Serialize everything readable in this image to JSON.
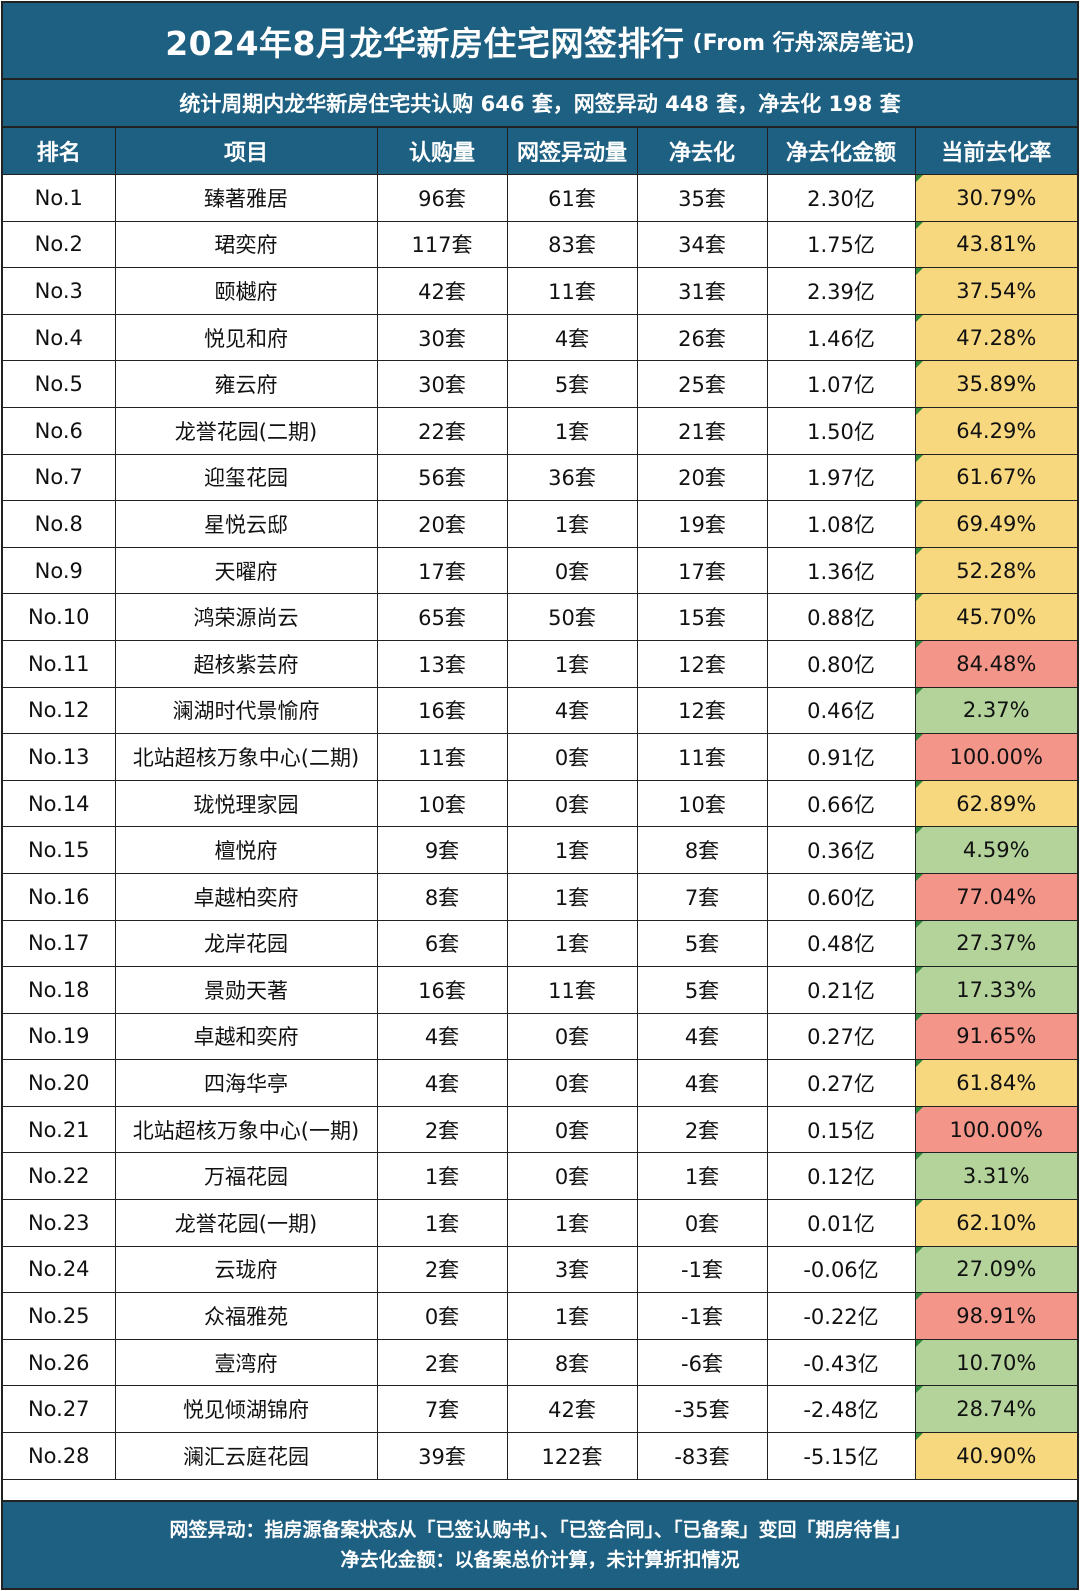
{
  "header": {
    "title": "2024年8月龙华新房住宅网签排行",
    "source": "(From 行舟深房笔记)",
    "subtitle": "统计周期内龙华新房住宅共认购 646 套，网签异动 448 套，净去化 198 套"
  },
  "colors": {
    "header_bg": "#1e6082",
    "rate_yellow": "#f7d87e",
    "rate_red": "#f4958a",
    "rate_green": "#b3d39a"
  },
  "chart_data": {
    "type": "table",
    "columns": [
      "排名",
      "项目",
      "认购量",
      "网签异动量",
      "净去化",
      "净去化金额",
      "当前去化率"
    ],
    "rows": [
      {
        "rank": "No.1",
        "project": "臻著雅居",
        "subscribed": "96套",
        "changed": "61套",
        "net": "35套",
        "amount": "2.30亿",
        "rate": "30.79%",
        "level": "yellow"
      },
      {
        "rank": "No.2",
        "project": "珺奕府",
        "subscribed": "117套",
        "changed": "83套",
        "net": "34套",
        "amount": "1.75亿",
        "rate": "43.81%",
        "level": "yellow"
      },
      {
        "rank": "No.3",
        "project": "颐樾府",
        "subscribed": "42套",
        "changed": "11套",
        "net": "31套",
        "amount": "2.39亿",
        "rate": "37.54%",
        "level": "yellow"
      },
      {
        "rank": "No.4",
        "project": "悦见和府",
        "subscribed": "30套",
        "changed": "4套",
        "net": "26套",
        "amount": "1.46亿",
        "rate": "47.28%",
        "level": "yellow"
      },
      {
        "rank": "No.5",
        "project": "雍云府",
        "subscribed": "30套",
        "changed": "5套",
        "net": "25套",
        "amount": "1.07亿",
        "rate": "35.89%",
        "level": "yellow"
      },
      {
        "rank": "No.6",
        "project": "龙誉花园(二期)",
        "subscribed": "22套",
        "changed": "1套",
        "net": "21套",
        "amount": "1.50亿",
        "rate": "64.29%",
        "level": "yellow"
      },
      {
        "rank": "No.7",
        "project": "迎玺花园",
        "subscribed": "56套",
        "changed": "36套",
        "net": "20套",
        "amount": "1.97亿",
        "rate": "61.67%",
        "level": "yellow"
      },
      {
        "rank": "No.8",
        "project": "星悦云邸",
        "subscribed": "20套",
        "changed": "1套",
        "net": "19套",
        "amount": "1.08亿",
        "rate": "69.49%",
        "level": "yellow"
      },
      {
        "rank": "No.9",
        "project": "天曜府",
        "subscribed": "17套",
        "changed": "0套",
        "net": "17套",
        "amount": "1.36亿",
        "rate": "52.28%",
        "level": "yellow"
      },
      {
        "rank": "No.10",
        "project": "鸿荣源尚云",
        "subscribed": "65套",
        "changed": "50套",
        "net": "15套",
        "amount": "0.88亿",
        "rate": "45.70%",
        "level": "yellow"
      },
      {
        "rank": "No.11",
        "project": "超核紫芸府",
        "subscribed": "13套",
        "changed": "1套",
        "net": "12套",
        "amount": "0.80亿",
        "rate": "84.48%",
        "level": "red"
      },
      {
        "rank": "No.12",
        "project": "澜湖时代景愉府",
        "subscribed": "16套",
        "changed": "4套",
        "net": "12套",
        "amount": "0.46亿",
        "rate": "2.37%",
        "level": "green"
      },
      {
        "rank": "No.13",
        "project": "北站超核万象中心(二期)",
        "subscribed": "11套",
        "changed": "0套",
        "net": "11套",
        "amount": "0.91亿",
        "rate": "100.00%",
        "level": "red"
      },
      {
        "rank": "No.14",
        "project": "珑悦理家园",
        "subscribed": "10套",
        "changed": "0套",
        "net": "10套",
        "amount": "0.66亿",
        "rate": "62.89%",
        "level": "yellow"
      },
      {
        "rank": "No.15",
        "project": "檀悦府",
        "subscribed": "9套",
        "changed": "1套",
        "net": "8套",
        "amount": "0.36亿",
        "rate": "4.59%",
        "level": "green"
      },
      {
        "rank": "No.16",
        "project": "卓越柏奕府",
        "subscribed": "8套",
        "changed": "1套",
        "net": "7套",
        "amount": "0.60亿",
        "rate": "77.04%",
        "level": "red"
      },
      {
        "rank": "No.17",
        "project": "龙岸花园",
        "subscribed": "6套",
        "changed": "1套",
        "net": "5套",
        "amount": "0.48亿",
        "rate": "27.37%",
        "level": "green"
      },
      {
        "rank": "No.18",
        "project": "景勋天著",
        "subscribed": "16套",
        "changed": "11套",
        "net": "5套",
        "amount": "0.21亿",
        "rate": "17.33%",
        "level": "green"
      },
      {
        "rank": "No.19",
        "project": "卓越和奕府",
        "subscribed": "4套",
        "changed": "0套",
        "net": "4套",
        "amount": "0.27亿",
        "rate": "91.65%",
        "level": "red"
      },
      {
        "rank": "No.20",
        "project": "四海华亭",
        "subscribed": "4套",
        "changed": "0套",
        "net": "4套",
        "amount": "0.27亿",
        "rate": "61.84%",
        "level": "yellow"
      },
      {
        "rank": "No.21",
        "project": "北站超核万象中心(一期)",
        "subscribed": "2套",
        "changed": "0套",
        "net": "2套",
        "amount": "0.15亿",
        "rate": "100.00%",
        "level": "red"
      },
      {
        "rank": "No.22",
        "project": "万福花园",
        "subscribed": "1套",
        "changed": "0套",
        "net": "1套",
        "amount": "0.12亿",
        "rate": "3.31%",
        "level": "green"
      },
      {
        "rank": "No.23",
        "project": "龙誉花园(一期)",
        "subscribed": "1套",
        "changed": "1套",
        "net": "0套",
        "amount": "0.01亿",
        "rate": "62.10%",
        "level": "yellow"
      },
      {
        "rank": "No.24",
        "project": "云珑府",
        "subscribed": "2套",
        "changed": "3套",
        "net": "-1套",
        "amount": "-0.06亿",
        "rate": "27.09%",
        "level": "green"
      },
      {
        "rank": "No.25",
        "project": "众福雅苑",
        "subscribed": "0套",
        "changed": "1套",
        "net": "-1套",
        "amount": "-0.22亿",
        "rate": "98.91%",
        "level": "red"
      },
      {
        "rank": "No.26",
        "project": "壹湾府",
        "subscribed": "2套",
        "changed": "8套",
        "net": "-6套",
        "amount": "-0.43亿",
        "rate": "10.70%",
        "level": "green"
      },
      {
        "rank": "No.27",
        "project": "悦见倾湖锦府",
        "subscribed": "7套",
        "changed": "42套",
        "net": "-35套",
        "amount": "-2.48亿",
        "rate": "28.74%",
        "level": "green"
      },
      {
        "rank": "No.28",
        "project": "澜汇云庭花园",
        "subscribed": "39套",
        "changed": "122套",
        "net": "-83套",
        "amount": "-5.15亿",
        "rate": "40.90%",
        "level": "yellow"
      }
    ]
  },
  "footer": {
    "note1": "网签异动：指房源备案状态从「已签认购书」、「已签合同」、「已备案」变回「期房待售」",
    "note2": "净去化金额：以备案总价计算，未计算折扣情况"
  }
}
